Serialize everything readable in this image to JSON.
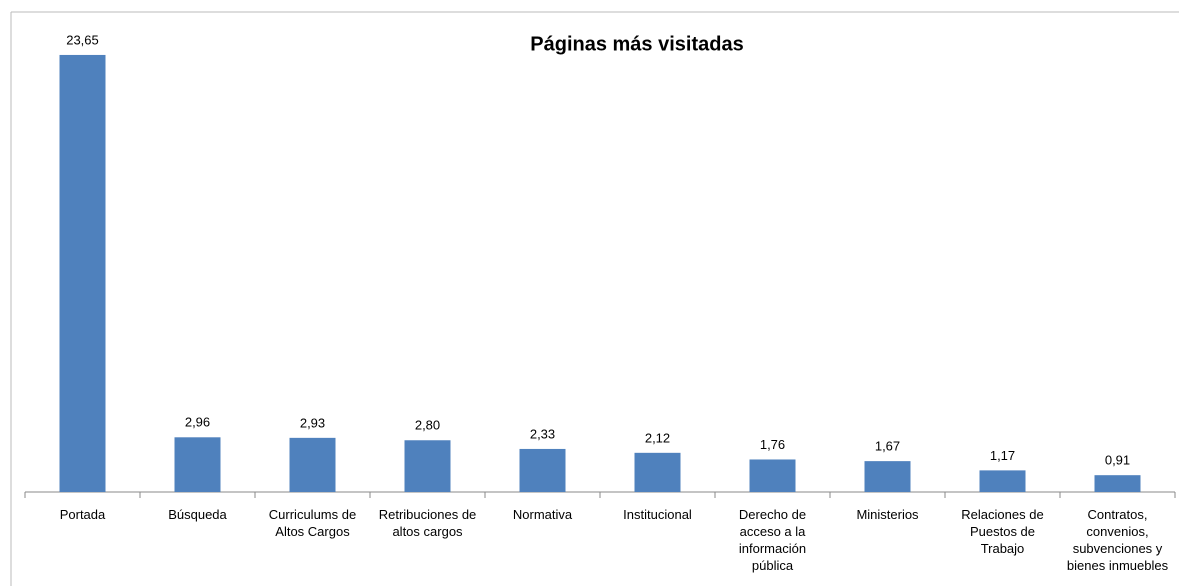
{
  "chart_data": {
    "type": "bar",
    "title": "Páginas más visitadas",
    "categories": [
      "Portada",
      "Búsqueda",
      "Curriculums de Altos Cargos",
      "Retribuciones de altos cargos",
      "Normativa",
      "Institucional",
      "Derecho de acceso a la información pública",
      "Ministerios",
      "Relaciones de Puestos de Trabajo",
      "Contratos, convenios, subvenciones y bienes inmuebles"
    ],
    "values": [
      23.65,
      2.96,
      2.93,
      2.8,
      2.33,
      2.12,
      1.76,
      1.67,
      1.17,
      0.91
    ],
    "value_labels": [
      "23,65",
      "2,96",
      "2,93",
      "2,80",
      "2,33",
      "2,12",
      "1,76",
      "1,67",
      "1,17",
      "0,91"
    ],
    "color": "#4f81bd",
    "ylim": [
      0,
      25
    ]
  }
}
